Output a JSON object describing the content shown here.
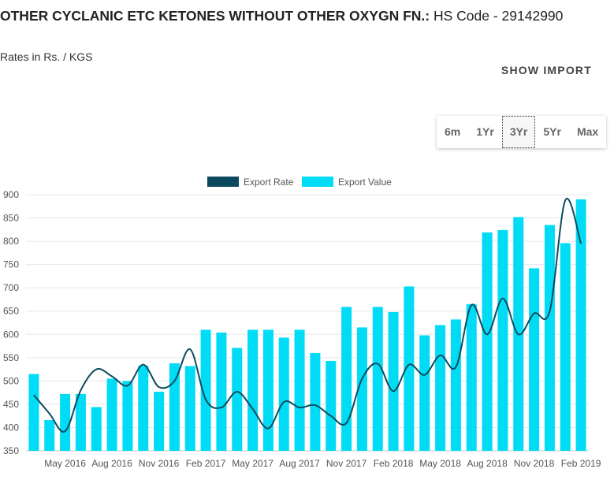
{
  "header": {
    "title_bold": "OTHER CYCLANIC ETC KETONES WITHOUT OTHER OXYGN FN.:",
    "title_rest": " HS Code - 29142990",
    "rates_label": "Rates in Rs. / KGS",
    "show_import": "SHOW IMPORT"
  },
  "range_buttons": [
    {
      "label": "6m"
    },
    {
      "label": "1Yr"
    },
    {
      "label": "3Yr",
      "selected": true
    },
    {
      "label": "5Yr"
    },
    {
      "label": "Max"
    }
  ],
  "colors": {
    "bar": "#00dcf5",
    "line": "#0b4a5e"
  },
  "chart_data": {
    "type": "bar+line",
    "legend": [
      "Export Rate",
      "Export Value"
    ],
    "legend_position": "top-center",
    "ylim": [
      350,
      900
    ],
    "yticks": [
      350,
      400,
      450,
      500,
      550,
      600,
      650,
      700,
      750,
      800,
      850,
      900
    ],
    "categories": [
      "Mar 2016",
      "Apr 2016",
      "May 2016",
      "Jun 2016",
      "Jul 2016",
      "Aug 2016",
      "Sep 2016",
      "Oct 2016",
      "Nov 2016",
      "Dec 2016",
      "Jan 2017",
      "Feb 2017",
      "Mar 2017",
      "Apr 2017",
      "May 2017",
      "Jun 2017",
      "Jul 2017",
      "Aug 2017",
      "Sep 2017",
      "Oct 2017",
      "Nov 2017",
      "Dec 2017",
      "Jan 2018",
      "Feb 2018",
      "Mar 2018",
      "Apr 2018",
      "May 2018",
      "Jun 2018",
      "Jul 2018",
      "Aug 2018",
      "Sep 2018",
      "Oct 2018",
      "Nov 2018",
      "Dec 2018",
      "Jan 2019",
      "Feb 2019"
    ],
    "xtick_labels": [
      "May 2016",
      "Aug 2016",
      "Nov 2016",
      "Feb 2017",
      "May 2017",
      "Aug 2017",
      "Nov 2017",
      "Feb 2018",
      "May 2018",
      "Aug 2018",
      "Nov 2018",
      "Feb 2019"
    ],
    "series": [
      {
        "name": "Export Value",
        "type": "bar",
        "values": [
          515,
          416,
          472,
          472,
          444,
          505,
          500,
          533,
          477,
          538,
          532,
          610,
          604,
          571,
          610,
          610,
          593,
          610,
          560,
          543,
          659,
          615,
          659,
          648,
          703,
          598,
          620,
          632,
          665,
          819,
          824,
          852,
          742,
          835,
          796,
          890
        ]
      },
      {
        "name": "Export Rate",
        "type": "line",
        "values": [
          470,
          430,
          392,
          480,
          525,
          510,
          490,
          535,
          487,
          500,
          568,
          460,
          443,
          477,
          440,
          398,
          455,
          443,
          448,
          425,
          410,
          505,
          537,
          478,
          535,
          513,
          555,
          530,
          663,
          600,
          677,
          600,
          645,
          650,
          888,
          795
        ]
      }
    ]
  }
}
